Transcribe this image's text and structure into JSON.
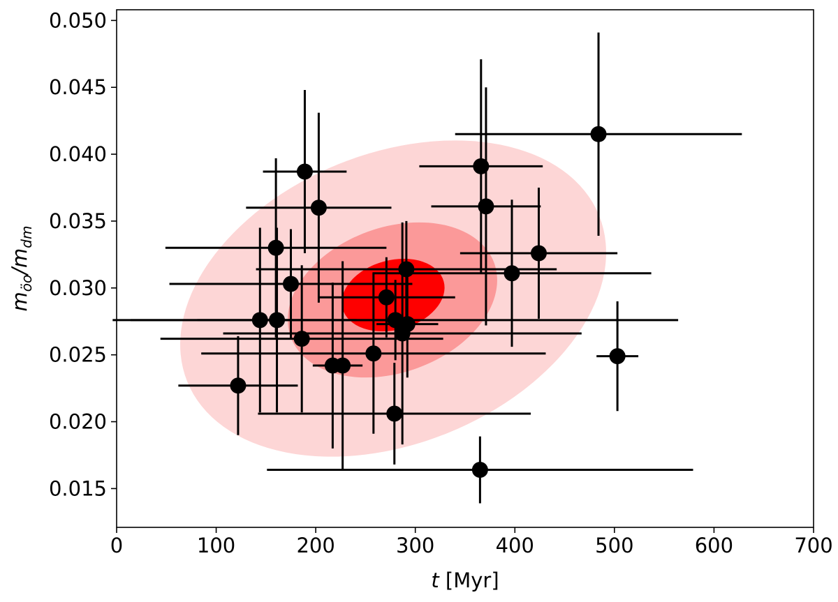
{
  "chart_data": {
    "type": "scatter",
    "xlabel_parts": [
      "t",
      " [Myr]"
    ],
    "ylabel_parts": [
      "m",
      "öo",
      "/m",
      "dm"
    ],
    "xlim": [
      0,
      700
    ],
    "xticks": [
      0,
      100,
      200,
      300,
      400,
      500,
      600,
      700
    ],
    "ylim": [
      0.0121,
      0.0508
    ],
    "yticks": [
      0.015,
      {
        "value": 0.02,
        "label": "0.020"
      },
      0.025,
      {
        "value": 0.03,
        "label": "0.030"
      },
      0.035,
      {
        "value": 0.04,
        "label": "0.040"
      },
      0.045,
      {
        "value": 0.05,
        "label": "0.050"
      }
    ],
    "series": [
      {
        "color": "#000000",
        "x": [
          484,
          366,
          371,
          189,
          203,
          160,
          175,
          424,
          397,
          291,
          271,
          280,
          144,
          161,
          292,
          287,
          186,
          258,
          217,
          227,
          122,
          279,
          503,
          365
        ],
        "values": [
          0.0415,
          0.0391,
          0.0361,
          0.0387,
          0.036,
          0.033,
          0.0303,
          0.0326,
          0.0311,
          0.0314,
          0.0293,
          0.0276,
          0.0276,
          0.0276,
          0.0273,
          0.0266,
          0.0262,
          0.0251,
          0.0242,
          0.0242,
          0.0227,
          0.0206,
          0.0249,
          0.0164
        ],
        "xerr": [
          144,
          62,
          55,
          42,
          73,
          111,
          122,
          79,
          140,
          151,
          69,
          284,
          130,
          80,
          31,
          180,
          142,
          173,
          20,
          20,
          60,
          137,
          21,
          214
        ],
        "yerr": [
          0.0076,
          0.008,
          0.0089,
          0.0061,
          0.0071,
          0.0067,
          0.0041,
          0.0049,
          0.0055,
          0.0036,
          0.003,
          0.003,
          0.0069,
          0.0069,
          0.004,
          0.0083,
          0.0055,
          0.006,
          0.0062,
          0.0078,
          0.0037,
          0.0038,
          0.0041,
          0.0025
        ]
      }
    ]
  }
}
